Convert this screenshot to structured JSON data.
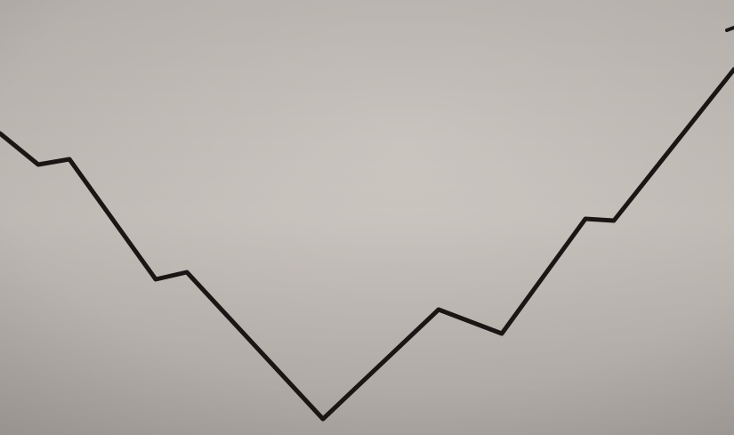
{
  "photo": {
    "subject": "",
    "colors": {
      "paper_light": "#cdc7c2",
      "paper_mid": "#bfb9b4",
      "paper_shadow": "#a8a39e",
      "ink": "#1a1614"
    }
  }
}
